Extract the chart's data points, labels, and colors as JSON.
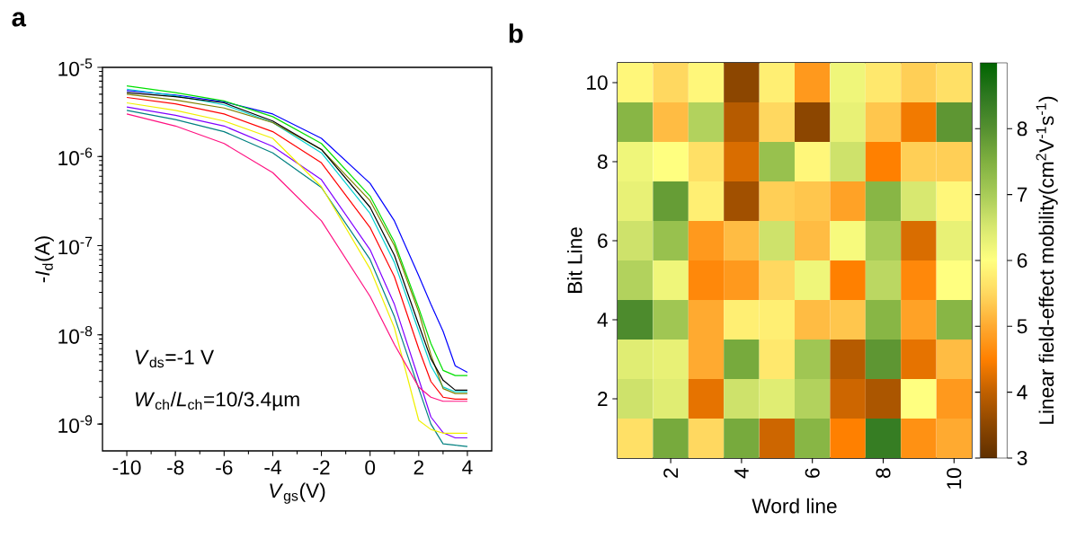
{
  "chart_data": [
    {
      "type": "line",
      "title": "a",
      "xlabel": "*V*$_{gs}$(V)",
      "ylabel": "-*I*$_{d}$(A)",
      "log": "y",
      "xlim": [
        -11,
        5
      ],
      "ylim": [
        5e-10,
        1e-05
      ],
      "xticks": [
        -10,
        -8,
        -6,
        -4,
        -2,
        0,
        2,
        4
      ],
      "yticks": [
        {
          "value": 1e-09,
          "label": "10$^{-9}$"
        },
        {
          "value": 1e-08,
          "label": "10$^{-8}$"
        },
        {
          "value": 1e-07,
          "label": "10$^{-7}$"
        },
        {
          "value": 1e-06,
          "label": "10$^{-6}$"
        },
        {
          "value": 1e-05,
          "label": "10$^{-5}$"
        }
      ],
      "x": [
        -10,
        -8,
        -6,
        -4,
        -2,
        0,
        1,
        2,
        2.5,
        3,
        3.5,
        4
      ],
      "annotations": [
        "*V*$_{ds}$=-1 V",
        "*W*$_{ch}$/*L*$_{ch}$=10/3.4µm"
      ],
      "series": [
        {
          "color": "#0000ff",
          "values": [
            5.5e-06,
            4.9e-06,
            4.1e-06,
            3e-06,
            1.6e-06,
            5e-07,
            1.9e-07,
            4.6e-08,
            2.2e-08,
            1.1e-08,
            4.5e-09,
            3.8e-09
          ]
        },
        {
          "color": "#00e000",
          "values": [
            6.2e-06,
            5.2e-06,
            4.2e-06,
            2.8e-06,
            1.4e-06,
            3.6e-07,
            1.1e-07,
            2e-08,
            8e-09,
            4e-09,
            3.5e-09,
            3.5e-09
          ]
        },
        {
          "color": "#00d0d0",
          "values": [
            5.7e-06,
            4.8e-06,
            3.8e-06,
            2.4e-06,
            1.1e-06,
            2.3e-07,
            6.5e-08,
            1.1e-08,
            4.5e-09,
            2.6e-09,
            2.3e-09,
            2.3e-09
          ]
        },
        {
          "color": "#808000",
          "values": [
            5e-06,
            4.3e-06,
            3.5e-06,
            2.4e-06,
            1.2e-06,
            3.2e-07,
            1e-07,
            1.8e-08,
            6e-09,
            2.5e-09,
            2.2e-09,
            2.2e-09
          ]
        },
        {
          "color": "#000000",
          "values": [
            5.2e-06,
            4.7e-06,
            4e-06,
            2.5e-06,
            1.2e-06,
            2.7e-07,
            7.8e-08,
            1.3e-08,
            5.4e-09,
            3.1e-09,
            2.4e-09,
            2.4e-09
          ]
        },
        {
          "color": "#ff0000",
          "values": [
            4.6e-06,
            3.9e-06,
            3e-06,
            1.9e-06,
            8.5e-07,
            1.6e-07,
            4.5e-08,
            7e-09,
            3e-09,
            2e-09,
            1.9e-09,
            1.9e-09
          ]
        },
        {
          "color": "#8000ff",
          "values": [
            3.6e-06,
            2.9e-06,
            2.2e-06,
            1.3e-06,
            5.5e-07,
            9e-08,
            2.2e-08,
            3.2e-09,
            1.2e-09,
            8e-10,
            7e-10,
            7e-10
          ]
        },
        {
          "color": "#008080",
          "values": [
            3.3e-06,
            2.6e-06,
            1.9e-06,
            1.1e-06,
            4.5e-07,
            7e-08,
            1.6e-08,
            2.5e-09,
            1e-09,
            6e-10,
            5.8e-10,
            5.6e-10
          ]
        },
        {
          "color": "#f0f000",
          "values": [
            4e-06,
            3.3e-06,
            2.5e-06,
            1.6e-06,
            4.6e-07,
            5.5e-08,
            1.2e-08,
            1.1e-09,
            8.7e-10,
            7.9e-10,
            7.9e-10,
            7.9e-10
          ]
        },
        {
          "color": "#ff1080",
          "values": [
            3e-06,
            2.2e-06,
            1.4e-06,
            6.6e-07,
            1.9e-07,
            2.7e-08,
            7.8e-09,
            2.6e-09,
            2e-09,
            1.8e-09,
            1.8e-09,
            1.8e-09
          ]
        }
      ]
    },
    {
      "type": "heatmap",
      "title": "b",
      "xlabel": "Word line",
      "ylabel": "Bit Line",
      "clabel": "Linear field-effect mobility(cm$^{2}$V$^{-1}$s$^{-1}$)",
      "categories": [
        null,
        "2",
        null,
        "4",
        null,
        "6",
        null,
        "8",
        null,
        "10"
      ],
      "y_categories": [
        "10",
        null,
        "8",
        null,
        "6",
        null,
        "4",
        null,
        "2",
        null
      ],
      "clim": [
        3,
        9
      ],
      "cticks": [
        3,
        4,
        5,
        6,
        7,
        8
      ],
      "cells": [
        [
          5.9,
          5.5,
          5.9,
          3.5,
          5.8,
          4.8,
          6.2,
          5.7,
          5.4,
          5.6
        ],
        [
          7.4,
          5.2,
          6.9,
          3.9,
          5.5,
          3.5,
          6.3,
          5.3,
          4.4,
          7.9
        ],
        [
          6.2,
          6.0,
          5.6,
          4.2,
          7.2,
          5.9,
          6.6,
          4.5,
          5.4,
          5.4
        ],
        [
          6.3,
          7.8,
          5.8,
          3.7,
          5.4,
          5.3,
          4.9,
          7.4,
          6.5,
          5.9
        ],
        [
          6.6,
          7.2,
          4.8,
          5.2,
          6.6,
          5.2,
          6.1,
          7.0,
          4.2,
          6.3
        ],
        [
          6.9,
          6.2,
          4.6,
          4.8,
          5.5,
          6.2,
          4.5,
          6.8,
          4.6,
          6.0
        ],
        [
          8.1,
          7.1,
          5.0,
          5.8,
          5.8,
          5.2,
          5.3,
          7.4,
          4.9,
          7.4
        ],
        [
          6.4,
          6.3,
          5.0,
          7.6,
          5.7,
          7.1,
          3.9,
          7.9,
          4.3,
          5.2
        ],
        [
          6.6,
          6.4,
          4.3,
          6.6,
          6.4,
          6.9,
          4.1,
          3.8,
          6.0,
          4.8
        ],
        [
          5.6,
          7.6,
          5.5,
          7.6,
          4.1,
          7.4,
          4.5,
          8.4,
          4.7,
          5.0
        ]
      ]
    }
  ]
}
